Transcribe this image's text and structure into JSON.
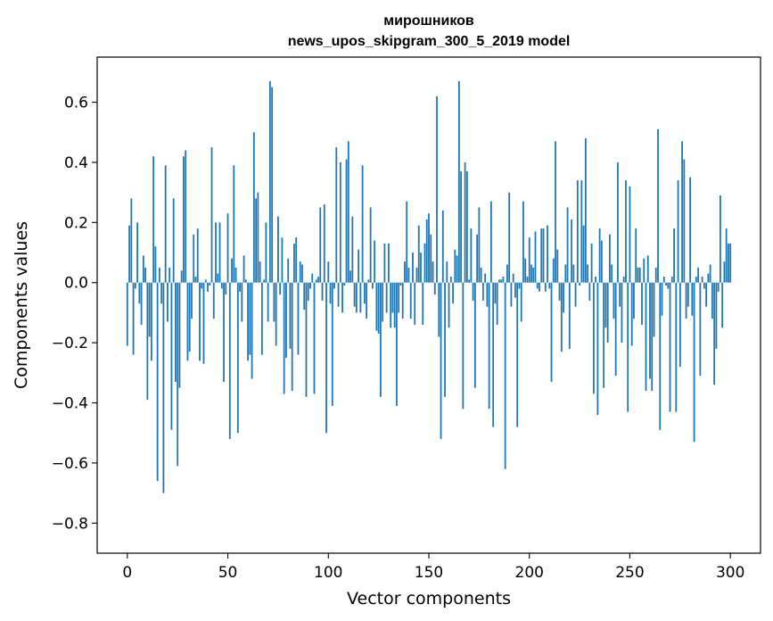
{
  "chart_data": {
    "type": "bar",
    "title": "мирошников",
    "subtitle": "news_upos_skipgram_300_5_2019 model",
    "xlabel": "Vector components",
    "ylabel": "Components values",
    "xlim": [
      -15,
      315
    ],
    "ylim": [
      -0.9,
      0.75
    ],
    "xticks": [
      0,
      50,
      100,
      150,
      200,
      250,
      300
    ],
    "xtick_labels": [
      "0",
      "50",
      "100",
      "150",
      "200",
      "250",
      "300"
    ],
    "yticks": [
      -0.8,
      -0.6,
      -0.4,
      -0.2,
      0.0,
      0.2,
      0.4,
      0.6
    ],
    "ytick_labels": [
      "−0.8",
      "−0.6",
      "−0.4",
      "−0.2",
      "0.0",
      "0.2",
      "0.4",
      "0.6"
    ],
    "color": "#1f77b4",
    "grid": false,
    "values": [
      -0.21,
      0.19,
      0.28,
      -0.24,
      -0.02,
      0.2,
      -0.07,
      -0.14,
      0.09,
      0.05,
      -0.39,
      -0.18,
      -0.26,
      0.42,
      0.12,
      -0.66,
      0.05,
      -0.07,
      -0.7,
      0.39,
      -0.13,
      0.05,
      -0.49,
      0.28,
      -0.33,
      -0.61,
      -0.35,
      0.04,
      0.42,
      0.44,
      -0.26,
      -0.23,
      -0.12,
      0.16,
      0.02,
      0.18,
      -0.26,
      -0.02,
      -0.27,
      0.01,
      -0.03,
      -0.01,
      0.45,
      -0.12,
      0.2,
      0.03,
      0.2,
      -0.02,
      -0.33,
      -0.04,
      0.23,
      -0.52,
      0.08,
      0.39,
      0.05,
      -0.5,
      -0.03,
      -0.13,
      0.09,
      0.01,
      -0.26,
      -0.24,
      -0.32,
      0.5,
      0.28,
      0.3,
      0.07,
      -0.24,
      0.01,
      0.2,
      -0.13,
      0.67,
      0.65,
      -0.13,
      -0.21,
      0.22,
      -0.04,
      0.15,
      -0.37,
      -0.25,
      0.08,
      -0.22,
      -0.36,
      0.13,
      0.15,
      -0.24,
      0.07,
      0.06,
      -0.09,
      -0.38,
      -0.06,
      -0.02,
      0.03,
      -0.37,
      0.01,
      0.02,
      0.25,
      -0.06,
      0.26,
      -0.5,
      0.07,
      -0.07,
      -0.41,
      -0.02,
      0.45,
      -0.08,
      0.4,
      -0.1,
      -0.01,
      0.41,
      0.47,
      0.04,
      0.22,
      -0.08,
      -0.1,
      0.11,
      -0.1,
      0.39,
      -0.07,
      -0.12,
      0.01,
      0.25,
      -0.02,
      0.14,
      -0.16,
      -0.17,
      -0.38,
      -0.13,
      0.13,
      -0.1,
      0.13,
      -0.15,
      -0.1,
      -0.15,
      -0.41,
      -0.1,
      -0.01,
      -0.12,
      0.07,
      0.27,
      0.05,
      -0.12,
      0.1,
      -0.14,
      0.05,
      0.19,
      0.1,
      -0.14,
      0.13,
      0.21,
      0.23,
      0.16,
      0.07,
      -0.04,
      0.62,
      -0.18,
      -0.52,
      0.24,
      -0.38,
      0.07,
      -0.15,
      0.02,
      -0.07,
      0.11,
      0.09,
      0.67,
      0.37,
      -0.42,
      0.4,
      0.37,
      0.01,
      0.18,
      -0.06,
      -0.35,
      0.16,
      0.25,
      0.05,
      -0.06,
      0.03,
      -0.08,
      -0.42,
      0.27,
      -0.48,
      -0.07,
      -0.14,
      0.01,
      0.01,
      0.02,
      -0.62,
      0.06,
      0.3,
      -0.08,
      0.03,
      -0.05,
      -0.48,
      -0.02,
      -0.13,
      0.27,
      0.08,
      0.02,
      0.15,
      0.06,
      0.05,
      0.17,
      -0.02,
      -0.03,
      0.18,
      0.18,
      -0.03,
      0.19,
      -0.02,
      -0.33,
      0.08,
      0.47,
      0.11,
      -0.06,
      -0.23,
      -0.1,
      0.06,
      0.25,
      -0.22,
      0.21,
      0.06,
      -0.08,
      0.34,
      -0.01,
      0.34,
      0.19,
      0.48,
      0.06,
      -0.06,
      0.13,
      -0.37,
      0.02,
      -0.44,
      0.18,
      0.14,
      -0.35,
      -0.15,
      -0.2,
      0.16,
      0.06,
      -0.12,
      -0.31,
      0.4,
      -0.08,
      -0.2,
      0.02,
      0.34,
      -0.43,
      0.32,
      -0.21,
      -0.12,
      0.18,
      0.05,
      0.05,
      -0.14,
      0.08,
      -0.36,
      0.09,
      -0.32,
      -0.36,
      -0.18,
      0.05,
      0.51,
      -0.49,
      -0.11,
      0.02,
      -0.01,
      -0.02,
      -0.43,
      0.02,
      0.18,
      -0.43,
      0.34,
      -0.28,
      0.47,
      0.41,
      -0.12,
      -0.08,
      0.35,
      -0.11,
      -0.53,
      0.02,
      0.05,
      -0.31,
      0.02,
      -0.02,
      -0.08,
      0.03,
      0.06,
      -0.12,
      -0.34,
      -0.22,
      -0.03,
      0.29,
      -0.15,
      0.07,
      0.18,
      0.13,
      0.13
    ]
  }
}
